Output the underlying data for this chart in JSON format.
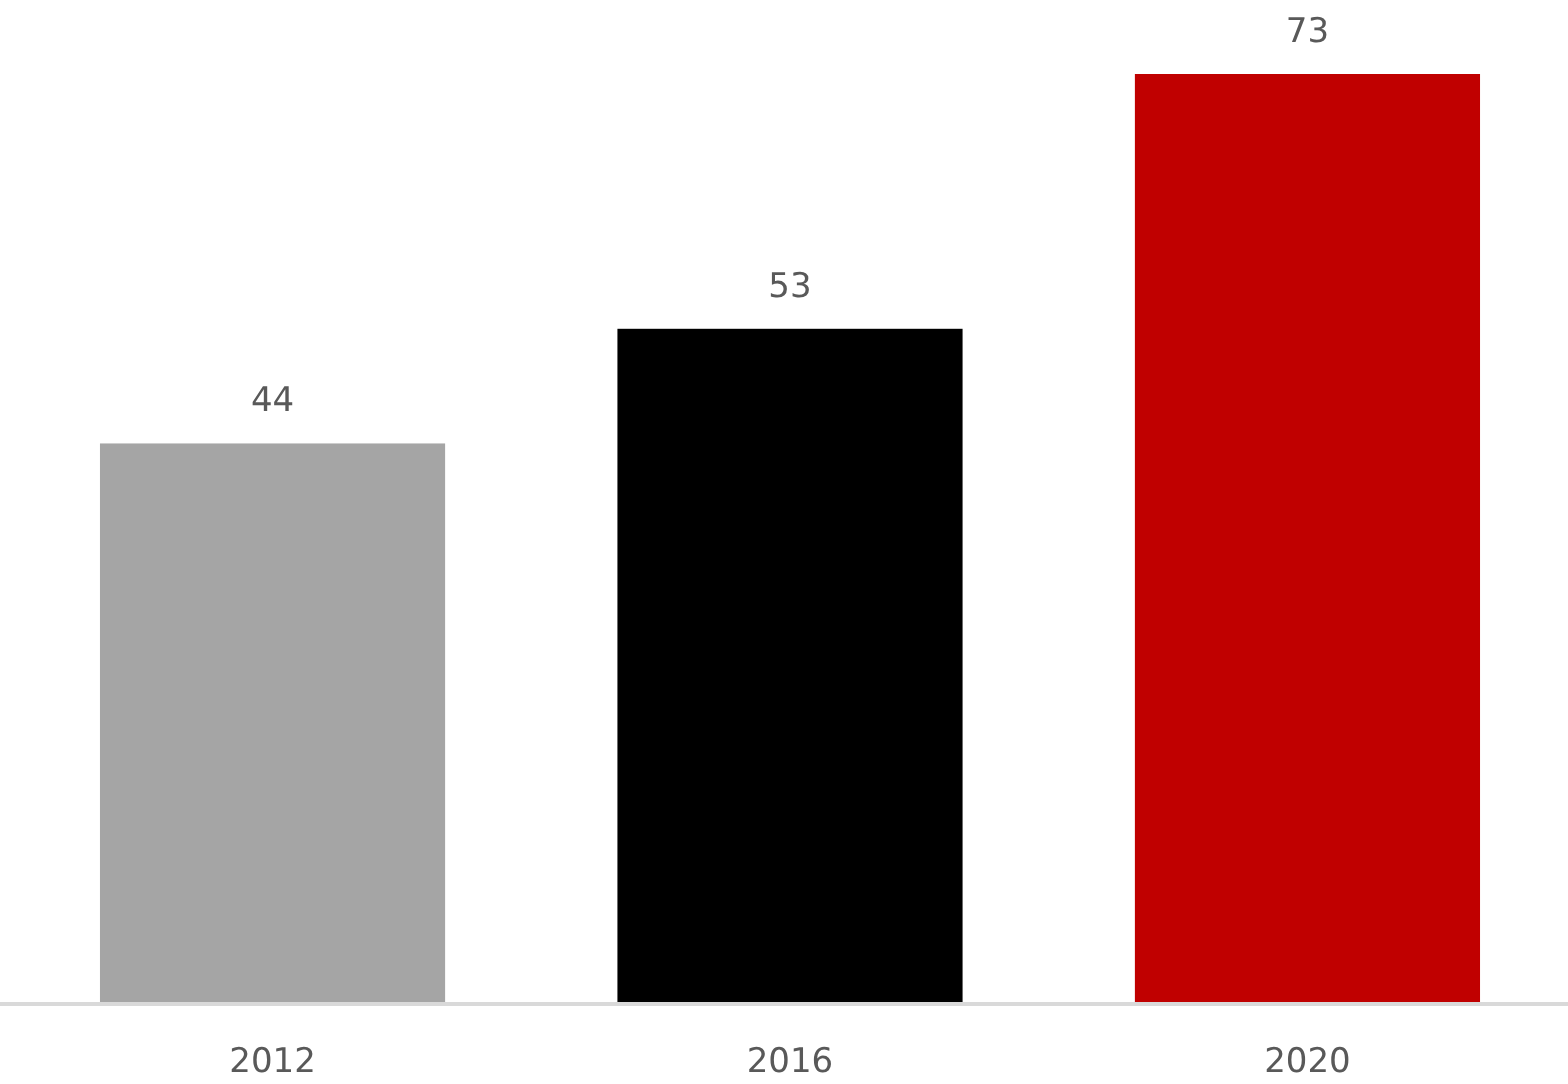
{
  "chart_data": {
    "type": "bar",
    "categories": [
      "2012",
      "2016",
      "2020"
    ],
    "values": [
      44,
      53,
      73
    ],
    "colors": [
      "#a5a5a5",
      "#000000",
      "#c00000"
    ],
    "data_labels": true
  }
}
